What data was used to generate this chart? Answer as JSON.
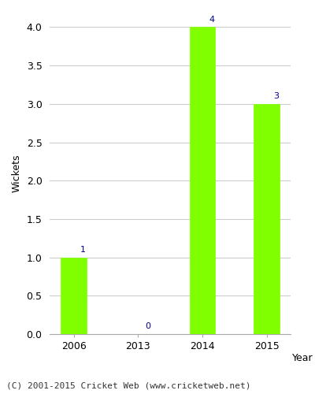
{
  "categories": [
    "2006",
    "2013",
    "2014",
    "2015"
  ],
  "values": [
    1,
    0,
    4,
    3
  ],
  "bar_color": "#7FFF00",
  "bar_edge_color": "#7FFF00",
  "label_color": "#00008B",
  "ylabel": "Wickets",
  "xlabel": "Year",
  "ylim": [
    0,
    4.2
  ],
  "yticks": [
    0.0,
    0.5,
    1.0,
    1.5,
    2.0,
    2.5,
    3.0,
    3.5,
    4.0
  ],
  "grid_color": "#cccccc",
  "background_color": "#ffffff",
  "footer": "(C) 2001-2015 Cricket Web (www.cricketweb.net)",
  "label_fontsize": 8,
  "axis_fontsize": 9,
  "footer_fontsize": 8,
  "bar_width": 0.4
}
